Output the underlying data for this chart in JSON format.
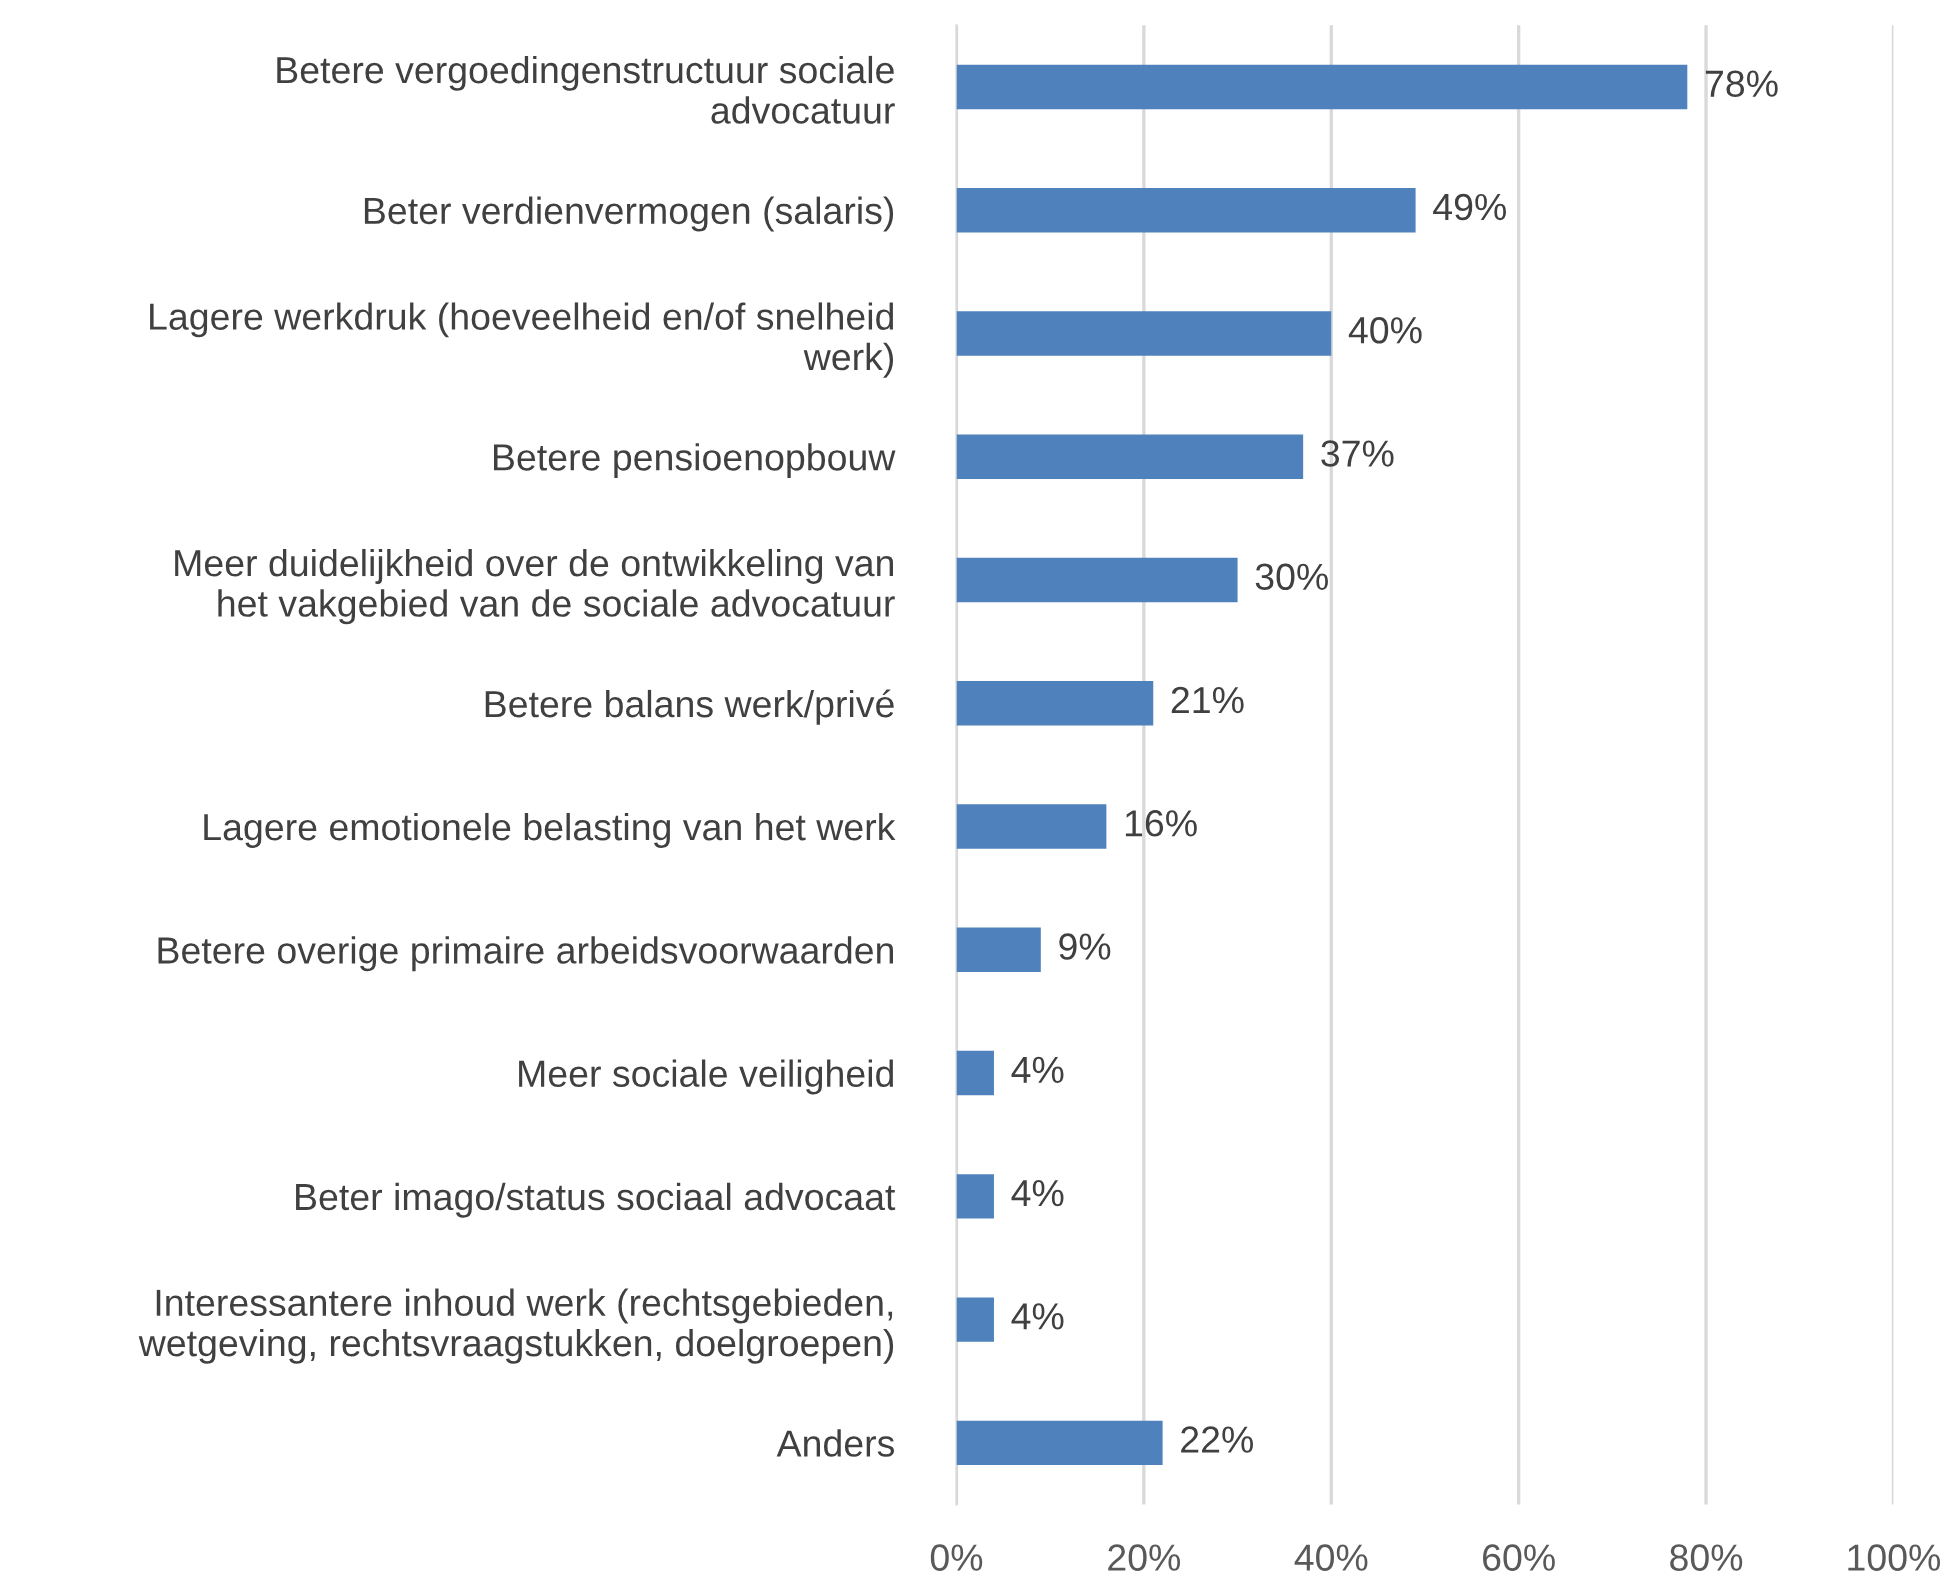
{
  "chart_data": {
    "type": "bar",
    "orientation": "horizontal",
    "categories": [
      "Betere vergoedingenstructuur sociale\nadvocatuur",
      "Beter verdienvermogen (salaris)",
      "Lagere werkdruk (hoeveelheid en/of snelheid\nwerk)",
      "Betere pensioenopbouw",
      "Meer duidelijkheid over de ontwikkeling van\nhet vakgebied van de sociale advocatuur",
      "Betere balans werk/privé",
      "Lagere emotionele belasting van het werk",
      "Betere overige primaire arbeidsvoorwaarden",
      "Meer sociale veiligheid",
      "Beter imago/status sociaal advocaat",
      "Interessantere inhoud werk (rechtsgebieden,\nwetgeving, rechtsvraagstukken, doelgroepen)",
      "Anders"
    ],
    "values": [
      78,
      49,
      40,
      37,
      30,
      21,
      16,
      9,
      4,
      4,
      4,
      22
    ],
    "value_labels": [
      "78%",
      "49%",
      "40%",
      "37%",
      "30%",
      "21%",
      "16%",
      "9%",
      "4%",
      "4%",
      "4%",
      "22%"
    ],
    "color": "#4f81bd",
    "xlim": [
      0,
      100
    ],
    "xticks": [
      {
        "value": 0,
        "label": "0%"
      },
      {
        "value": 20,
        "label": "20%"
      },
      {
        "value": 40,
        "label": "40%"
      },
      {
        "value": 60,
        "label": "60%"
      },
      {
        "value": 80,
        "label": "80%"
      },
      {
        "value": 100,
        "label": "100%"
      }
    ],
    "grid": "x",
    "legend": false
  }
}
